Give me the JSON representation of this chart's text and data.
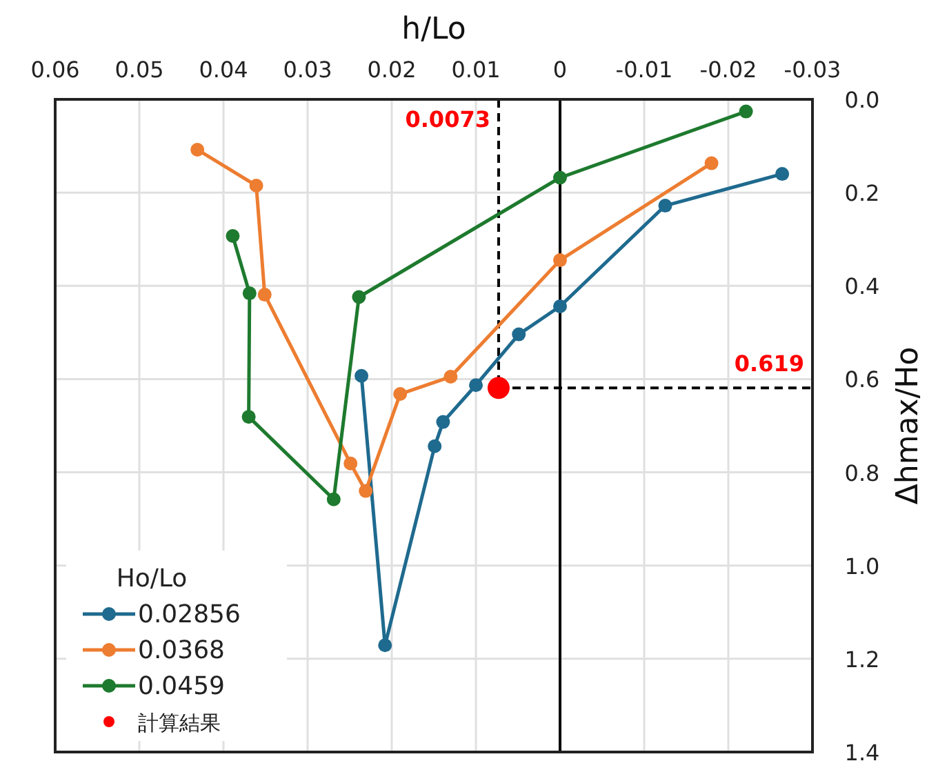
{
  "chart_data": {
    "type": "line",
    "xlabel": "h/Lo",
    "ylabel": "Δhmax/Ho",
    "legend_title": "Ho/Lo",
    "xlim": [
      0.06,
      -0.03
    ],
    "xticks": [
      0.06,
      0.05,
      0.04,
      0.03,
      0.02,
      0.01,
      0,
      -0.01,
      -0.02,
      -0.03
    ],
    "ylim": [
      1.4,
      0
    ],
    "yticks": [
      {
        "value": 0,
        "label": "0.0"
      },
      0.2,
      0.4,
      0.6,
      0.8,
      {
        "value": 1,
        "label": "1.0"
      },
      1.2,
      1.4
    ],
    "grid": true,
    "legend": "bottom left",
    "marker": "circle",
    "line_style": "solid",
    "series": [
      {
        "name": "0.02856",
        "color": "#1f6a8f",
        "x": [
          0.0236,
          0.0208,
          0.0149,
          0.0139,
          0.01,
          0.0049,
          0,
          -0.0125,
          -0.0264
        ],
        "values": [
          0.593,
          1.171,
          0.744,
          0.692,
          0.613,
          0.504,
          0.444,
          0.228,
          0.16
        ]
      },
      {
        "name": "0.0368",
        "color": "#ed7d31",
        "x": [
          0.0431,
          0.0361,
          0.0351,
          0.0249,
          0.0231,
          0.019,
          0.013,
          0,
          -0.018
        ],
        "values": [
          0.108,
          0.185,
          0.419,
          0.781,
          0.84,
          0.632,
          0.595,
          0.345,
          0.137
        ]
      },
      {
        "name": "0.0459",
        "color": "#1e7a2e",
        "x": [
          0.0389,
          0.0369,
          0.037,
          0.0269,
          0.0239,
          0,
          -0.0221
        ],
        "values": [
          0.293,
          0.416,
          0.681,
          0.858,
          0.424,
          0.168,
          0.026
        ]
      },
      {
        "name": "計算結果",
        "type": "scatter",
        "color": "#ff0000",
        "x": [
          0.0073
        ],
        "values": [
          0.619
        ]
      }
    ],
    "ref_lines": [
      {
        "axis": "x",
        "value": 0,
        "color": "#000000",
        "line_style": "solid"
      },
      {
        "axis": "x",
        "value": 0.0073,
        "label": "0.0073",
        "color": "#000000",
        "line_style": "dashed"
      },
      {
        "axis": "y",
        "value": 0.619,
        "label": "0.619",
        "color": "#000000",
        "line_style": "dashed"
      }
    ]
  }
}
